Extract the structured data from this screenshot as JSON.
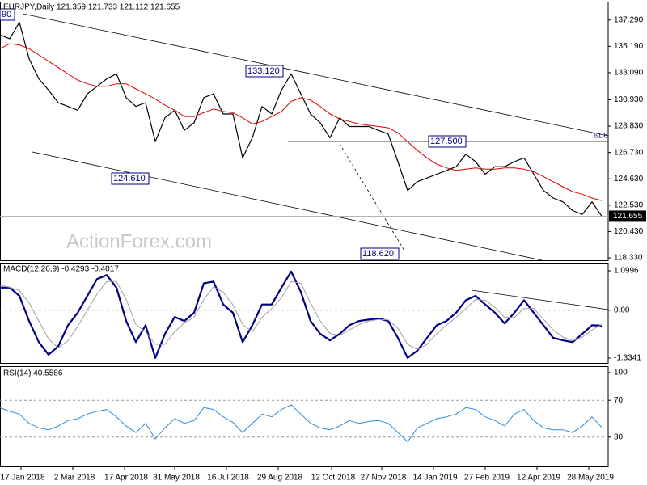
{
  "chart_data": [
    {
      "type": "line",
      "title": "EURJPY,Daily  121.359 121.733 121.112 121.655",
      "watermark": "ActionForex.com",
      "annotations": [
        "90",
        "133.120",
        "124.610",
        "118.620",
        "127.500",
        "61.8"
      ],
      "x": [
        0,
        6,
        12,
        18,
        24,
        30,
        36,
        42,
        48,
        54,
        60,
        66,
        72,
        78,
        84,
        90,
        96,
        102,
        108,
        114,
        120,
        126,
        132,
        138,
        144,
        150,
        156,
        162,
        168,
        174,
        180,
        186,
        192,
        198,
        204,
        210,
        216,
        222,
        228,
        234,
        240,
        246,
        252,
        258,
        264,
        270,
        276,
        282,
        288,
        294,
        300,
        306,
        312,
        318,
        324,
        330,
        336,
        342,
        348,
        354,
        360,
        366,
        372
      ],
      "xlim": [
        0,
        376
      ],
      "ylim": [
        118.14,
        138.69
      ],
      "yticks": [
        {
          "value": 137.29,
          "label": "137.290"
        },
        {
          "value": 135.19,
          "label": "135.190"
        },
        {
          "value": 133.09,
          "label": "133.090"
        },
        {
          "value": 130.93,
          "label": "130.930"
        },
        {
          "value": 128.83,
          "label": "128.830"
        },
        {
          "value": 126.73,
          "label": "126.730"
        },
        {
          "value": 124.63,
          "label": "124.630"
        },
        {
          "value": 122.53,
          "label": "122.530"
        },
        {
          "value": 120.43,
          "label": "120.430"
        },
        {
          "value": 118.33,
          "label": "118.330"
        }
      ],
      "grid": false,
      "series": [
        {
          "name": "Close",
          "color": "#000000",
          "width": 1.2,
          "values": [
            136.1,
            135.8,
            137.1,
            134.2,
            132.6,
            131.7,
            130.7,
            130.4,
            130.1,
            131.4,
            132.0,
            132.6,
            133.0,
            131.1,
            130.4,
            130.7,
            127.6,
            129.5,
            130.1,
            128.5,
            129.1,
            131.1,
            131.4,
            129.8,
            129.8,
            126.3,
            127.9,
            130.4,
            129.8,
            131.7,
            133.0,
            131.4,
            129.8,
            129.1,
            127.9,
            129.5,
            128.8,
            128.8,
            128.8,
            128.5,
            128.2,
            126.0,
            123.7,
            124.4,
            124.7,
            125.0,
            125.3,
            125.6,
            126.6,
            126.0,
            125.0,
            125.6,
            125.6,
            126.0,
            126.3,
            125.0,
            123.7,
            123.1,
            122.8,
            122.1,
            121.8,
            122.8,
            121.655
          ]
        },
        {
          "name": "MA",
          "color": "#e00000",
          "width": 1,
          "values": [
            135.0,
            135.4,
            135.3,
            135.0,
            134.5,
            134.0,
            133.5,
            133.0,
            132.5,
            132.2,
            132.0,
            132.0,
            132.2,
            132.2,
            131.8,
            131.4,
            131.0,
            130.5,
            130.1,
            129.6,
            129.6,
            129.9,
            130.2,
            130.0,
            129.9,
            129.5,
            129.0,
            129.2,
            129.6,
            130.0,
            130.8,
            131.1,
            130.9,
            130.4,
            129.8,
            129.4,
            129.2,
            129.0,
            128.9,
            128.8,
            128.7,
            128.3,
            127.6,
            126.9,
            126.3,
            125.8,
            125.5,
            125.3,
            125.4,
            125.5,
            125.4,
            125.4,
            125.5,
            125.5,
            125.4,
            125.2,
            124.8,
            124.4,
            124.0,
            123.6,
            123.4,
            123.1,
            122.9
          ]
        }
      ]
    },
    {
      "type": "line",
      "title": "MACD(12,26,9) -0.4293 -0.4017",
      "x": [
        0,
        6,
        12,
        18,
        24,
        30,
        36,
        42,
        48,
        54,
        60,
        66,
        72,
        78,
        84,
        90,
        96,
        102,
        108,
        114,
        120,
        126,
        132,
        138,
        144,
        150,
        156,
        162,
        168,
        174,
        180,
        186,
        192,
        198,
        204,
        210,
        216,
        222,
        228,
        234,
        240,
        246,
        252,
        258,
        264,
        270,
        276,
        282,
        288,
        294,
        300,
        306,
        312,
        318,
        324,
        330,
        336,
        342,
        348,
        354,
        360,
        366,
        372
      ],
      "xlim": [
        0,
        376
      ],
      "ylim": [
        -1.3341,
        1.0996
      ],
      "yticks": [
        1.0996,
        {
          "value": 0,
          "label": "0.00"
        },
        -1.3341
      ],
      "grid": true,
      "series": [
        {
          "name": "MACD",
          "color": "#000080",
          "width": 2.2,
          "values": [
            0.63,
            0.63,
            0.4,
            -0.3,
            -0.89,
            -1.24,
            -1.01,
            -0.42,
            -0.07,
            0.4,
            0.87,
            0.98,
            0.63,
            -0.3,
            -0.89,
            -0.42,
            -1.33,
            -0.66,
            -0.19,
            -0.3,
            -0.07,
            0.75,
            0.8,
            0.16,
            -0.07,
            -0.89,
            -0.42,
            0.16,
            0.16,
            0.63,
            1.08,
            0.51,
            -0.3,
            -0.66,
            -0.84,
            -0.66,
            -0.42,
            -0.3,
            -0.26,
            -0.23,
            -0.3,
            -0.77,
            -1.33,
            -1.13,
            -0.77,
            -0.42,
            -0.3,
            -0.07,
            0.28,
            0.4,
            0.16,
            -0.07,
            -0.37,
            -0.07,
            0.28,
            -0.07,
            -0.42,
            -0.77,
            -0.84,
            -0.89,
            -0.66,
            -0.42,
            -0.43
          ]
        },
        {
          "name": "Signal",
          "color": "#a0a0a0",
          "width": 1,
          "values": [
            0.7,
            0.64,
            0.55,
            0.2,
            -0.3,
            -0.8,
            -1.05,
            -0.85,
            -0.45,
            0.0,
            0.45,
            0.8,
            0.8,
            0.3,
            -0.4,
            -0.6,
            -0.95,
            -0.95,
            -0.6,
            -0.35,
            -0.2,
            0.3,
            0.65,
            0.5,
            0.15,
            -0.4,
            -0.6,
            -0.2,
            0.05,
            0.35,
            0.8,
            0.75,
            0.2,
            -0.3,
            -0.65,
            -0.7,
            -0.55,
            -0.4,
            -0.3,
            -0.26,
            -0.27,
            -0.5,
            -0.95,
            -1.1,
            -0.95,
            -0.65,
            -0.42,
            -0.2,
            0.05,
            0.3,
            0.28,
            0.08,
            -0.2,
            -0.2,
            0.05,
            0.05,
            -0.25,
            -0.55,
            -0.75,
            -0.85,
            -0.75,
            -0.55,
            -0.4
          ]
        }
      ]
    },
    {
      "type": "line",
      "title": "RSI(14) 40.5586",
      "x": [
        0,
        6,
        12,
        18,
        24,
        30,
        36,
        42,
        48,
        54,
        60,
        66,
        72,
        78,
        84,
        90,
        96,
        102,
        108,
        114,
        120,
        126,
        132,
        138,
        144,
        150,
        156,
        162,
        168,
        174,
        180,
        186,
        192,
        198,
        204,
        210,
        216,
        222,
        228,
        234,
        240,
        246,
        252,
        258,
        264,
        270,
        276,
        282,
        288,
        294,
        300,
        306,
        312,
        318,
        324,
        330,
        336,
        342,
        348,
        354,
        360,
        366,
        372
      ],
      "xlim": [
        0,
        376
      ],
      "xticks": [
        {
          "value": 13,
          "label": "17 Jan 2018"
        },
        {
          "value": 45,
          "label": "2 Mar 2018"
        },
        {
          "value": 77,
          "label": "17 Apr 2018"
        },
        {
          "value": 108,
          "label": "31 May 2018"
        },
        {
          "value": 140,
          "label": "16 Jul 2018"
        },
        {
          "value": 172,
          "label": "29 Aug 2018"
        },
        {
          "value": 205,
          "label": "12 Oct 2018"
        },
        {
          "value": 236,
          "label": "27 Nov 2018"
        },
        {
          "value": 268,
          "label": "14 Jan 2019"
        },
        {
          "value": 300,
          "label": "27 Feb 2019"
        },
        {
          "value": 332,
          "label": "12 Apr 2019"
        },
        {
          "value": 364,
          "label": "28 May 2019"
        }
      ],
      "ylim": [
        0,
        100
      ],
      "yticks": [
        100,
        70,
        30
      ],
      "grid": true,
      "series": [
        {
          "name": "RSI",
          "color": "#2a8de0",
          "width": 1,
          "values": [
            62,
            58,
            55,
            45,
            40,
            38,
            42,
            48,
            50,
            55,
            58,
            60,
            52,
            42,
            35,
            45,
            28,
            40,
            50,
            45,
            48,
            62,
            60,
            52,
            46,
            35,
            45,
            55,
            52,
            60,
            65,
            55,
            45,
            40,
            38,
            42,
            48,
            45,
            47,
            48,
            45,
            35,
            25,
            40,
            45,
            50,
            52,
            55,
            62,
            60,
            52,
            48,
            42,
            55,
            60,
            48,
            40,
            38,
            38,
            35,
            42,
            52,
            40.56
          ]
        }
      ]
    }
  ]
}
